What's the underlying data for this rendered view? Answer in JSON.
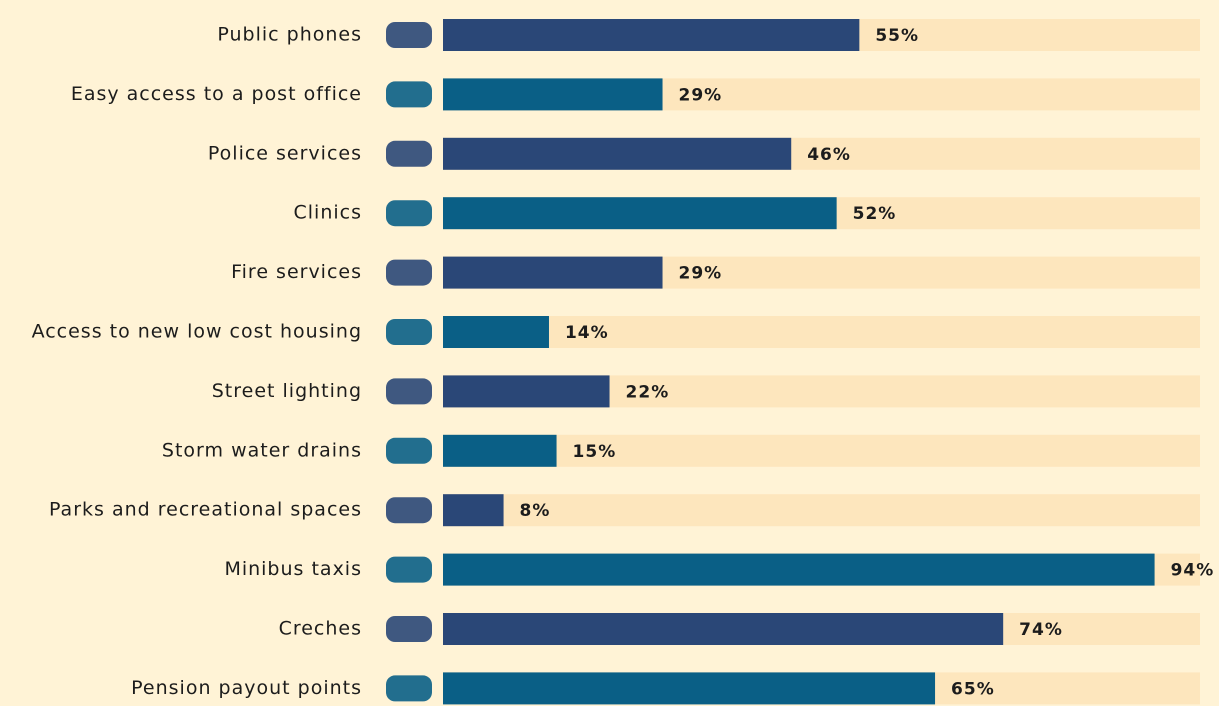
{
  "chart_data": {
    "type": "barh",
    "categories": [
      "Public phones",
      "Easy access to a post office",
      "Police services",
      "Clinics",
      "Fire services",
      "Access to new low cost housing",
      "Street lighting",
      "Storm water drains",
      "Parks and recreational spaces",
      "Minibus taxis",
      "Creches",
      "Pension payout points"
    ],
    "values": [
      55,
      29,
      46,
      52,
      29,
      14,
      22,
      15,
      8,
      94,
      74,
      65
    ],
    "value_labels": [
      "55%",
      "29%",
      "46%",
      "52%",
      "29%",
      "14%",
      "22%",
      "15%",
      "8%",
      "94%",
      "74%",
      "65%"
    ],
    "colors": [
      "#2a4777",
      "#0a5f86",
      "#2a4777",
      "#0a5f86",
      "#2a4777",
      "#0a5f86",
      "#2a4777",
      "#0a5f86",
      "#2a4777",
      "#0a5f86",
      "#2a4777",
      "#0a5f86"
    ],
    "xlim": [
      0,
      100
    ]
  }
}
